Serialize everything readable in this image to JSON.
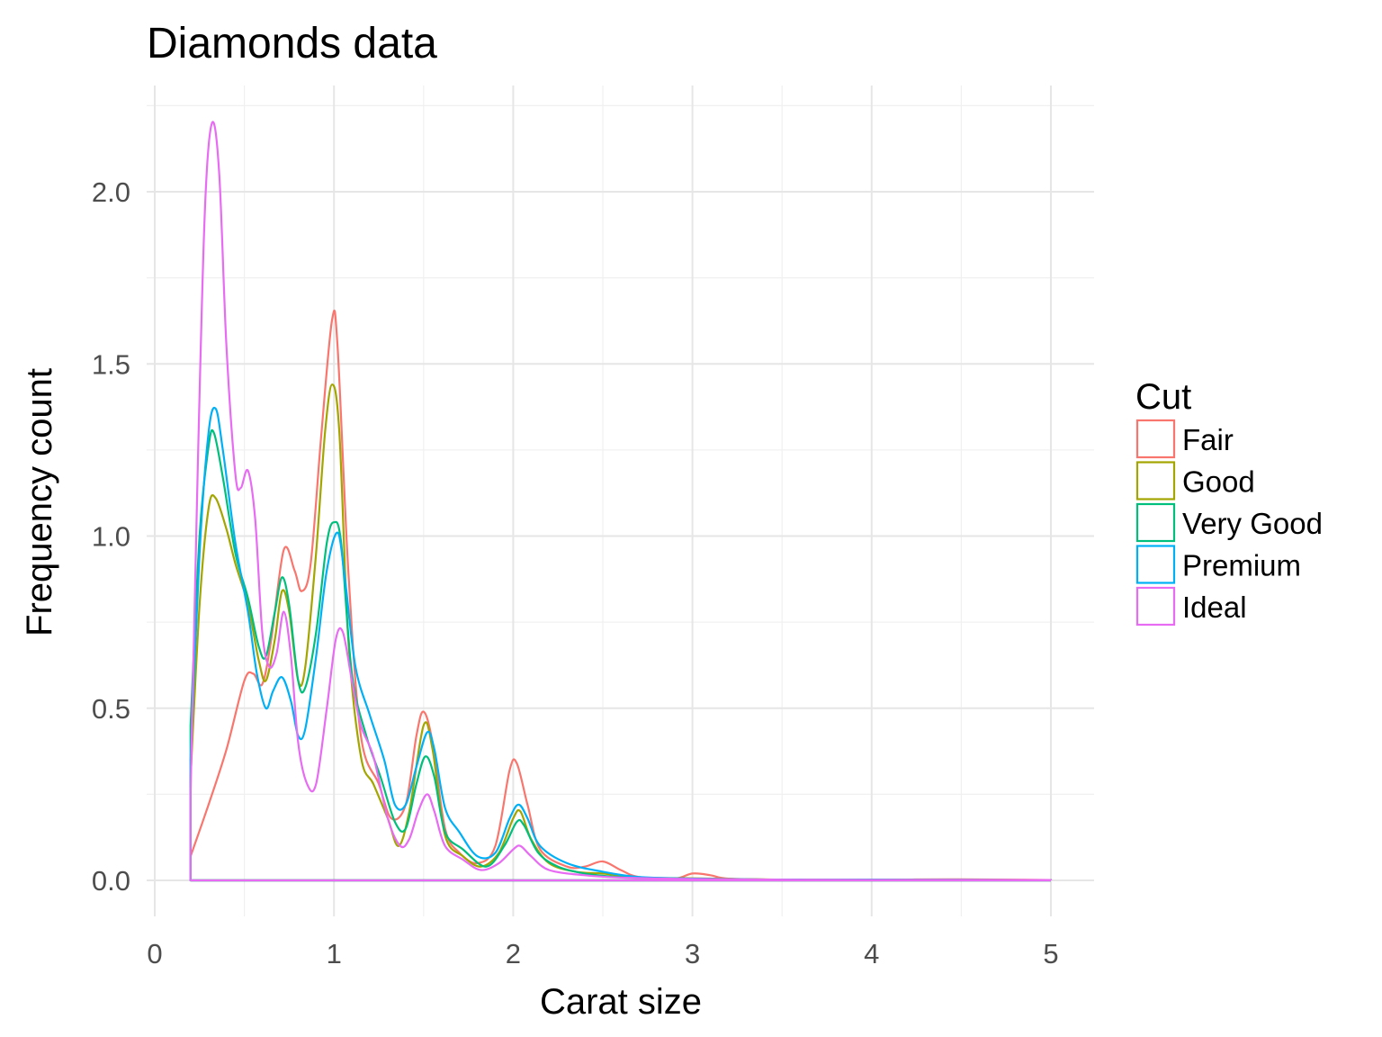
{
  "chart_data": {
    "type": "line",
    "title": "Diamonds data",
    "xlabel": "Carat size",
    "ylabel": "Frequency count",
    "xlim": [
      0,
      5
    ],
    "ylim": [
      0,
      2.2
    ],
    "xticks": [
      0,
      1,
      2,
      3,
      4,
      5
    ],
    "xtick_labels": [
      "0",
      "1",
      "2",
      "3",
      "4",
      "5"
    ],
    "yticks": [
      0.0,
      0.5,
      1.0,
      1.5,
      2.0
    ],
    "ytick_labels": [
      "0.0",
      "0.5",
      "1.0",
      "1.5",
      "2.0"
    ],
    "grid": true,
    "legend": {
      "title": "Cut",
      "position": "right"
    },
    "series": [
      {
        "name": "Fair",
        "color": "#F8766D",
        "points": [
          [
            0.2,
            0.07
          ],
          [
            0.3,
            0.22
          ],
          [
            0.4,
            0.38
          ],
          [
            0.5,
            0.58
          ],
          [
            0.55,
            0.6
          ],
          [
            0.6,
            0.57
          ],
          [
            0.65,
            0.7
          ],
          [
            0.72,
            0.96
          ],
          [
            0.78,
            0.9
          ],
          [
            0.82,
            0.84
          ],
          [
            0.87,
            0.92
          ],
          [
            0.93,
            1.3
          ],
          [
            0.99,
            1.63
          ],
          [
            1.02,
            1.55
          ],
          [
            1.08,
            0.9
          ],
          [
            1.15,
            0.42
          ],
          [
            1.25,
            0.28
          ],
          [
            1.32,
            0.18
          ],
          [
            1.4,
            0.22
          ],
          [
            1.46,
            0.42
          ],
          [
            1.5,
            0.49
          ],
          [
            1.55,
            0.4
          ],
          [
            1.62,
            0.15
          ],
          [
            1.7,
            0.08
          ],
          [
            1.8,
            0.05
          ],
          [
            1.9,
            0.1
          ],
          [
            1.98,
            0.32
          ],
          [
            2.02,
            0.34
          ],
          [
            2.08,
            0.22
          ],
          [
            2.15,
            0.09
          ],
          [
            2.3,
            0.04
          ],
          [
            2.4,
            0.04
          ],
          [
            2.5,
            0.055
          ],
          [
            2.6,
            0.03
          ],
          [
            2.7,
            0.01
          ],
          [
            2.9,
            0.005
          ],
          [
            3.0,
            0.02
          ],
          [
            3.1,
            0.015
          ],
          [
            3.2,
            0.005
          ],
          [
            3.5,
            0.002
          ],
          [
            4.0,
            0.002
          ],
          [
            4.5,
            0.003
          ],
          [
            5.0,
            0.001
          ]
        ]
      },
      {
        "name": "Good",
        "color": "#A3A500",
        "points": [
          [
            0.2,
            0.3
          ],
          [
            0.25,
            0.8
          ],
          [
            0.3,
            1.08
          ],
          [
            0.34,
            1.11
          ],
          [
            0.4,
            1.02
          ],
          [
            0.45,
            0.92
          ],
          [
            0.52,
            0.8
          ],
          [
            0.58,
            0.64
          ],
          [
            0.62,
            0.58
          ],
          [
            0.67,
            0.7
          ],
          [
            0.71,
            0.84
          ],
          [
            0.75,
            0.78
          ],
          [
            0.8,
            0.58
          ],
          [
            0.84,
            0.62
          ],
          [
            0.9,
            0.95
          ],
          [
            0.95,
            1.3
          ],
          [
            0.99,
            1.44
          ],
          [
            1.03,
            1.3
          ],
          [
            1.08,
            0.7
          ],
          [
            1.15,
            0.36
          ],
          [
            1.22,
            0.28
          ],
          [
            1.3,
            0.18
          ],
          [
            1.36,
            0.1
          ],
          [
            1.42,
            0.2
          ],
          [
            1.5,
            0.45
          ],
          [
            1.55,
            0.38
          ],
          [
            1.62,
            0.13
          ],
          [
            1.72,
            0.07
          ],
          [
            1.82,
            0.04
          ],
          [
            1.92,
            0.08
          ],
          [
            2.0,
            0.18
          ],
          [
            2.04,
            0.2
          ],
          [
            2.1,
            0.12
          ],
          [
            2.2,
            0.05
          ],
          [
            2.35,
            0.025
          ],
          [
            2.5,
            0.02
          ],
          [
            2.7,
            0.008
          ],
          [
            3.0,
            0.006
          ],
          [
            3.5,
            0.002
          ],
          [
            4.0,
            0.001
          ],
          [
            5.0,
            0.001
          ]
        ]
      },
      {
        "name": "Very Good",
        "color": "#00BF7D",
        "points": [
          [
            0.2,
            0.45
          ],
          [
            0.25,
            1.0
          ],
          [
            0.3,
            1.26
          ],
          [
            0.33,
            1.3
          ],
          [
            0.38,
            1.17
          ],
          [
            0.45,
            0.95
          ],
          [
            0.52,
            0.82
          ],
          [
            0.58,
            0.68
          ],
          [
            0.62,
            0.65
          ],
          [
            0.67,
            0.78
          ],
          [
            0.71,
            0.88
          ],
          [
            0.75,
            0.8
          ],
          [
            0.8,
            0.58
          ],
          [
            0.84,
            0.56
          ],
          [
            0.9,
            0.72
          ],
          [
            0.96,
            0.98
          ],
          [
            1.0,
            1.04
          ],
          [
            1.04,
            0.98
          ],
          [
            1.1,
            0.6
          ],
          [
            1.18,
            0.42
          ],
          [
            1.26,
            0.3
          ],
          [
            1.34,
            0.17
          ],
          [
            1.4,
            0.15
          ],
          [
            1.46,
            0.28
          ],
          [
            1.51,
            0.36
          ],
          [
            1.56,
            0.3
          ],
          [
            1.62,
            0.14
          ],
          [
            1.72,
            0.09
          ],
          [
            1.85,
            0.04
          ],
          [
            1.95,
            0.1
          ],
          [
            2.02,
            0.17
          ],
          [
            2.06,
            0.16
          ],
          [
            2.14,
            0.08
          ],
          [
            2.25,
            0.04
          ],
          [
            2.4,
            0.02
          ],
          [
            2.6,
            0.01
          ],
          [
            3.0,
            0.005
          ],
          [
            3.5,
            0.002
          ],
          [
            4.0,
            0.001
          ],
          [
            5.0,
            0.001
          ]
        ]
      },
      {
        "name": "Premium",
        "color": "#00B0F6",
        "points": [
          [
            0.2,
            0.35
          ],
          [
            0.25,
            0.95
          ],
          [
            0.3,
            1.3
          ],
          [
            0.34,
            1.37
          ],
          [
            0.38,
            1.25
          ],
          [
            0.45,
            0.98
          ],
          [
            0.52,
            0.78
          ],
          [
            0.57,
            0.6
          ],
          [
            0.62,
            0.5
          ],
          [
            0.66,
            0.55
          ],
          [
            0.71,
            0.59
          ],
          [
            0.76,
            0.52
          ],
          [
            0.8,
            0.42
          ],
          [
            0.84,
            0.44
          ],
          [
            0.9,
            0.65
          ],
          [
            0.96,
            0.9
          ],
          [
            1.02,
            1.01
          ],
          [
            1.06,
            0.88
          ],
          [
            1.12,
            0.62
          ],
          [
            1.2,
            0.48
          ],
          [
            1.28,
            0.35
          ],
          [
            1.34,
            0.22
          ],
          [
            1.4,
            0.22
          ],
          [
            1.46,
            0.33
          ],
          [
            1.52,
            0.43
          ],
          [
            1.56,
            0.38
          ],
          [
            1.62,
            0.21
          ],
          [
            1.7,
            0.14
          ],
          [
            1.8,
            0.07
          ],
          [
            1.9,
            0.08
          ],
          [
            1.98,
            0.18
          ],
          [
            2.03,
            0.22
          ],
          [
            2.08,
            0.18
          ],
          [
            2.15,
            0.1
          ],
          [
            2.3,
            0.05
          ],
          [
            2.5,
            0.025
          ],
          [
            2.7,
            0.01
          ],
          [
            3.0,
            0.005
          ],
          [
            3.5,
            0.002
          ],
          [
            4.0,
            0.002
          ],
          [
            5.0,
            0.001
          ]
        ]
      },
      {
        "name": "Ideal",
        "color": "#E76BF3",
        "points": [
          [
            0.2,
            0.25
          ],
          [
            0.24,
            1.2
          ],
          [
            0.28,
            1.95
          ],
          [
            0.32,
            2.2
          ],
          [
            0.36,
            2.05
          ],
          [
            0.4,
            1.55
          ],
          [
            0.45,
            1.18
          ],
          [
            0.48,
            1.14
          ],
          [
            0.52,
            1.19
          ],
          [
            0.56,
            1.05
          ],
          [
            0.6,
            0.72
          ],
          [
            0.64,
            0.62
          ],
          [
            0.68,
            0.66
          ],
          [
            0.72,
            0.78
          ],
          [
            0.76,
            0.65
          ],
          [
            0.8,
            0.4
          ],
          [
            0.85,
            0.28
          ],
          [
            0.9,
            0.28
          ],
          [
            0.96,
            0.5
          ],
          [
            1.01,
            0.7
          ],
          [
            1.05,
            0.72
          ],
          [
            1.1,
            0.58
          ],
          [
            1.15,
            0.45
          ],
          [
            1.22,
            0.36
          ],
          [
            1.3,
            0.18
          ],
          [
            1.37,
            0.1
          ],
          [
            1.42,
            0.12
          ],
          [
            1.47,
            0.2
          ],
          [
            1.52,
            0.25
          ],
          [
            1.56,
            0.2
          ],
          [
            1.62,
            0.1
          ],
          [
            1.72,
            0.06
          ],
          [
            1.82,
            0.03
          ],
          [
            1.92,
            0.05
          ],
          [
            2.0,
            0.09
          ],
          [
            2.04,
            0.1
          ],
          [
            2.1,
            0.07
          ],
          [
            2.2,
            0.03
          ],
          [
            2.4,
            0.015
          ],
          [
            2.6,
            0.008
          ],
          [
            3.0,
            0.004
          ],
          [
            3.5,
            0.002
          ],
          [
            4.0,
            0.001
          ],
          [
            5.0,
            0.001
          ]
        ]
      }
    ]
  }
}
